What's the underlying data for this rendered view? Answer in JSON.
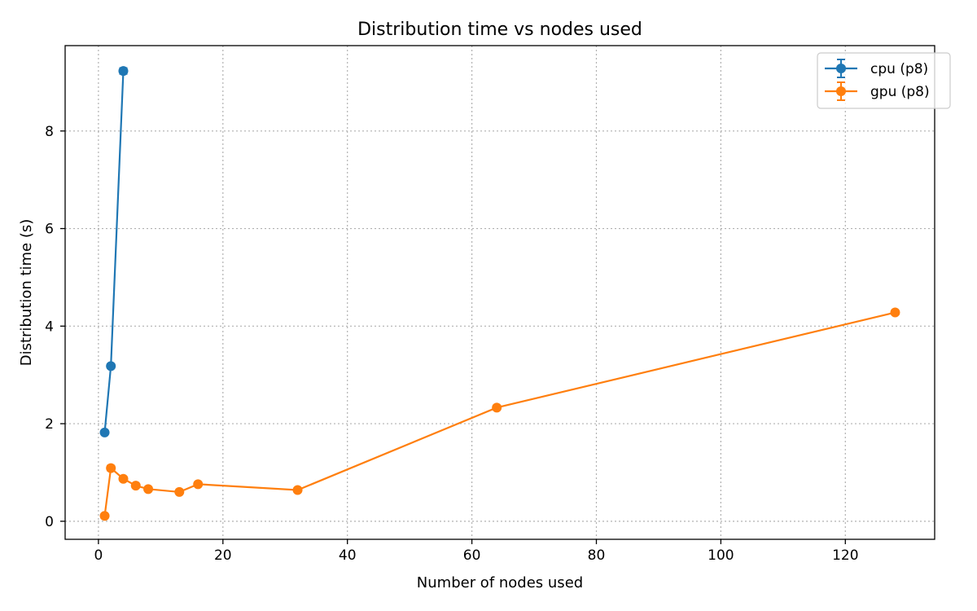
{
  "chart_data": {
    "type": "line",
    "title": "Distribution time vs nodes used",
    "xlabel": "Number of nodes used",
    "ylabel": "Distribution time (s)",
    "xlim": [
      -5.35,
      134.35
    ],
    "ylim": [
      -0.37,
      9.75
    ],
    "xticks": [
      0,
      20,
      40,
      60,
      80,
      100,
      120
    ],
    "yticks": [
      0,
      2,
      4,
      6,
      8
    ],
    "grid": true,
    "legend_position": "top-right",
    "series": [
      {
        "name": "cpu (p8)",
        "color": "#1f77b4",
        "x": [
          1,
          2,
          4
        ],
        "y": [
          1.82,
          3.18,
          9.23
        ],
        "yerr": [
          0.02,
          0.04,
          0.06
        ]
      },
      {
        "name": "gpu (p8)",
        "color": "#ff7f0e",
        "x": [
          1,
          2,
          4,
          6,
          8,
          13,
          16,
          32,
          64,
          128
        ],
        "y": [
          0.11,
          1.09,
          0.87,
          0.73,
          0.66,
          0.6,
          0.76,
          0.64,
          2.33,
          4.28
        ],
        "yerr": [
          0.02,
          0.05,
          0.04,
          0.03,
          0.03,
          0.03,
          0.03,
          0.03,
          0.04,
          0.04
        ]
      }
    ]
  }
}
